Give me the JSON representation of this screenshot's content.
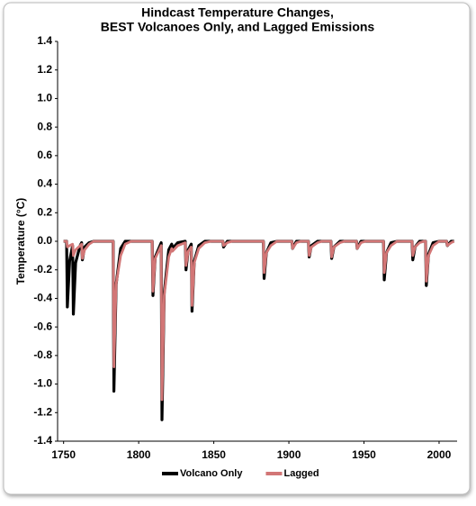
{
  "chart_data": {
    "type": "line",
    "title": [
      "Hindcast Temperature Changes,",
      "BEST Volcanoes Only, and Lagged Emissions"
    ],
    "ylabel": "Temperature (°C)",
    "xlim": [
      1746,
      2012
    ],
    "xticks": [
      1750,
      1800,
      1850,
      1900,
      1950,
      2000
    ],
    "ylim": [
      -1.4,
      1.4
    ],
    "yticks": [
      1.4,
      1.2,
      {
        "value": 1.0,
        "label": "1.0"
      },
      0.8,
      0.6,
      0.4,
      0.2,
      {
        "value": 0.0,
        "label": "0.0"
      },
      -0.2,
      -0.4,
      -0.6,
      -0.8,
      {
        "value": -1.0,
        "label": "-1.0"
      },
      -1.2,
      -1.4
    ],
    "grid": false,
    "legend": "bottom",
    "x": [
      1750,
      1752,
      1752.5,
      1754,
      1756,
      1756.5,
      1758,
      1761,
      1762,
      1762.5,
      1764,
      1767,
      1770,
      1783,
      1783.5,
      1785,
      1788,
      1791,
      1795,
      1809,
      1809.5,
      1811,
      1815,
      1815.5,
      1817,
      1820,
      1822,
      1822.5,
      1826,
      1831,
      1831.5,
      1833,
      1835,
      1835.5,
      1837,
      1840,
      1844,
      1848,
      1856,
      1856.5,
      1859,
      1862,
      1883,
      1883.5,
      1885,
      1888,
      1892,
      1902,
      1902.5,
      1905,
      1908,
      1913,
      1913.5,
      1915,
      1919,
      1922,
      1928,
      1928.5,
      1930,
      1934,
      1937,
      1945,
      1945.5,
      1948,
      1951,
      1963,
      1963.5,
      1965,
      1968,
      1972,
      1982,
      1982.5,
      1984,
      1987,
      1990,
      1991,
      1991.5,
      1993,
      1996,
      2000,
      2005,
      2005.5,
      2008,
      2010
    ],
    "series": [
      {
        "name": "Volcano Only",
        "color": "#000000",
        "values": [
          0,
          0,
          -0.46,
          -0.14,
          -0.03,
          -0.51,
          -0.15,
          -0.03,
          -0.01,
          -0.13,
          -0.04,
          -0.01,
          0,
          0,
          -1.05,
          -0.3,
          -0.05,
          0,
          0,
          0,
          -0.38,
          -0.11,
          -0.01,
          -1.25,
          -0.36,
          -0.06,
          -0.02,
          -0.05,
          -0.01,
          0,
          -0.2,
          -0.06,
          -0.02,
          -0.49,
          -0.14,
          -0.03,
          0,
          0,
          0,
          -0.04,
          0,
          0,
          0,
          -0.26,
          -0.08,
          -0.01,
          0,
          0,
          -0.05,
          0,
          0,
          0,
          -0.11,
          -0.03,
          0,
          0,
          0,
          -0.12,
          -0.04,
          0,
          0,
          0,
          -0.05,
          0,
          0,
          0,
          -0.27,
          -0.08,
          -0.01,
          0,
          0,
          -0.13,
          -0.04,
          0,
          0,
          0,
          -0.31,
          -0.09,
          -0.01,
          0,
          0,
          -0.03,
          0,
          0
        ]
      },
      {
        "name": "Lagged",
        "color": "#d27676",
        "values": [
          0,
          0,
          -0.04,
          -0.03,
          -0.02,
          -0.1,
          -0.06,
          -0.03,
          -0.02,
          -0.12,
          -0.06,
          -0.02,
          0,
          0,
          -0.88,
          -0.3,
          -0.1,
          -0.02,
          0,
          0,
          -0.35,
          -0.12,
          -0.03,
          -1.11,
          -0.38,
          -0.11,
          -0.05,
          -0.07,
          -0.03,
          -0.01,
          -0.17,
          -0.07,
          -0.04,
          -0.45,
          -0.15,
          -0.05,
          -0.01,
          0,
          0,
          -0.03,
          -0.01,
          0,
          0,
          -0.22,
          -0.08,
          -0.03,
          0,
          0,
          -0.05,
          -0.01,
          0,
          0,
          -0.1,
          -0.04,
          -0.01,
          0,
          0,
          -0.11,
          -0.04,
          -0.01,
          0,
          0,
          -0.05,
          -0.01,
          0,
          0,
          -0.22,
          -0.08,
          -0.03,
          0,
          0,
          -0.1,
          -0.04,
          -0.01,
          0,
          0,
          -0.28,
          -0.1,
          -0.03,
          0,
          0,
          -0.03,
          -0.01,
          0
        ]
      }
    ]
  }
}
